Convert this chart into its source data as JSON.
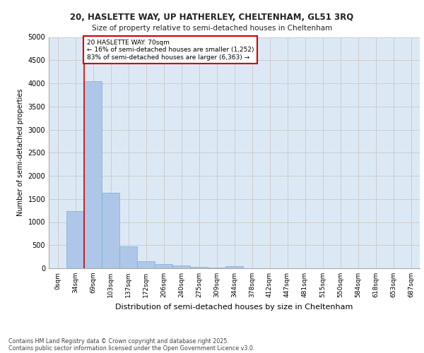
{
  "title1": "20, HASLETTE WAY, UP HATHERLEY, CHELTENHAM, GL51 3RQ",
  "title2": "Size of property relative to semi-detached houses in Cheltenham",
  "xlabel": "Distribution of semi-detached houses by size in Cheltenham",
  "ylabel": "Number of semi-detached properties",
  "bar_labels": [
    "0sqm",
    "34sqm",
    "69sqm",
    "103sqm",
    "137sqm",
    "172sqm",
    "206sqm",
    "240sqm",
    "275sqm",
    "309sqm",
    "344sqm",
    "378sqm",
    "412sqm",
    "447sqm",
    "481sqm",
    "515sqm",
    "550sqm",
    "584sqm",
    "618sqm",
    "653sqm",
    "687sqm"
  ],
  "bar_values": [
    5,
    1230,
    4050,
    1630,
    470,
    160,
    90,
    55,
    30,
    10,
    40,
    0,
    0,
    0,
    0,
    0,
    0,
    0,
    0,
    0,
    0
  ],
  "bar_color": "#aec6e8",
  "bar_edge_color": "#7aafd4",
  "annotation_title": "20 HASLETTE WAY: 70sqm",
  "annotation_line1": "← 16% of semi-detached houses are smaller (1,252)",
  "annotation_line2": "83% of semi-detached houses are larger (6,363) →",
  "vline_color": "#cc0000",
  "annotation_box_color": "#ffffff",
  "annotation_box_edge": "#cc0000",
  "ylim": [
    0,
    5000
  ],
  "yticks": [
    0,
    500,
    1000,
    1500,
    2000,
    2500,
    3000,
    3500,
    4000,
    4500,
    5000
  ],
  "grid_color": "#cccccc",
  "background_color": "#dce9f5",
  "footer1": "Contains HM Land Registry data © Crown copyright and database right 2025.",
  "footer2": "Contains public sector information licensed under the Open Government Licence v3.0."
}
